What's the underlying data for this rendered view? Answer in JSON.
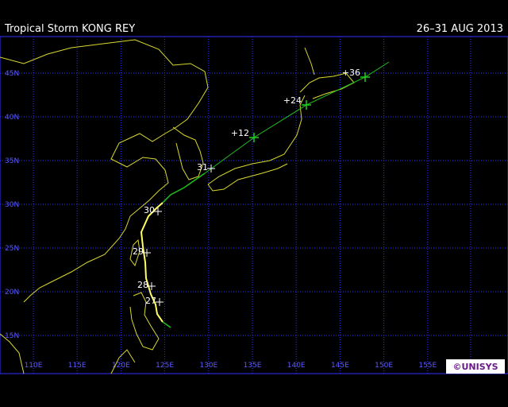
{
  "header": {
    "title": "Tropical Storm KONG REY",
    "date": "26–31 AUG 2013"
  },
  "grid": {
    "lat_labels": [
      "45N",
      "40N",
      "35N",
      "30N",
      "25N",
      "20N",
      "15N"
    ],
    "lon_labels": [
      "110E",
      "115E",
      "120E",
      "125E",
      "130E",
      "135E",
      "140E",
      "145E",
      "150E",
      "155E"
    ]
  },
  "track": {
    "day_labels": [
      "27",
      "28",
      "29",
      "30",
      "31"
    ],
    "forecast_labels": [
      "+12",
      "+24",
      "+36"
    ]
  },
  "copyright": "©UNISYS"
}
